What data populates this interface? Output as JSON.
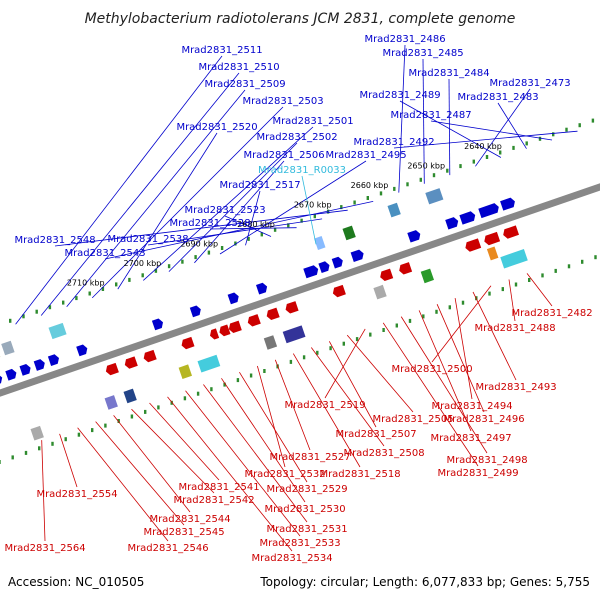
{
  "title": "Methylobacterium radiotolerans JCM 2831, complete genome",
  "footer": {
    "accession": "Accession: NC_010505",
    "topology": "Topology: circular; Length: 6,077,833 bp; Genes: 5,755"
  },
  "colors": {
    "forward": "#0000cc",
    "reverse": "#cc0000",
    "rna": "#33bbdd",
    "backbone": "#888888",
    "tick": "#2e8b2e"
  },
  "kbp_ticks": [
    "2640 kbp",
    "2650 kbp",
    "2660 kbp",
    "2670 kbp",
    "2680 kbp",
    "2690 kbp",
    "2700 kbp",
    "2710 kbp"
  ],
  "labels_forward": [
    "Mrad2831_2511",
    "Mrad2831_2510",
    "Mrad2831_2509",
    "Mrad2831_2503",
    "Mrad2831_2520",
    "Mrad2831_2501",
    "Mrad2831_2502",
    "Mrad2831_2506",
    "Mrad2831_2495",
    "Mrad2831_2517",
    "Mrad2831_2523",
    "Mrad2831_2528",
    "Mrad2831_2538",
    "Mrad2831_2548",
    "Mrad2831_2543",
    "Mrad2831_2486",
    "Mrad2831_2485",
    "Mrad2831_2484",
    "Mrad2831_2473",
    "Mrad2831_2489",
    "Mrad2831_2483",
    "Mrad2831_2487",
    "Mrad2831_2492"
  ],
  "labels_rna": [
    "Mrad2831_R0033"
  ],
  "labels_reverse": [
    "Mrad2831_2482",
    "Mrad2831_2488",
    "Mrad2831_2500",
    "Mrad2831_2493",
    "Mrad2831_2494",
    "Mrad2831_2496",
    "Mrad2831_2497",
    "Mrad2831_2498",
    "Mrad2831_2499",
    "Mrad2831_2519",
    "Mrad2831_2505",
    "Mrad2831_2507",
    "Mrad2831_2508",
    "Mrad2831_2518",
    "Mrad2831_2527",
    "Mrad2831_2532",
    "Mrad2831_2529",
    "Mrad2831_2530",
    "Mrad2831_2531",
    "Mrad2831_2533",
    "Mrad2831_2534",
    "Mrad2831_2541",
    "Mrad2831_2542",
    "Mrad2831_2544",
    "Mrad2831_2545",
    "Mrad2831_2546",
    "Mrad2831_2554",
    "Mrad2831_2564"
  ]
}
